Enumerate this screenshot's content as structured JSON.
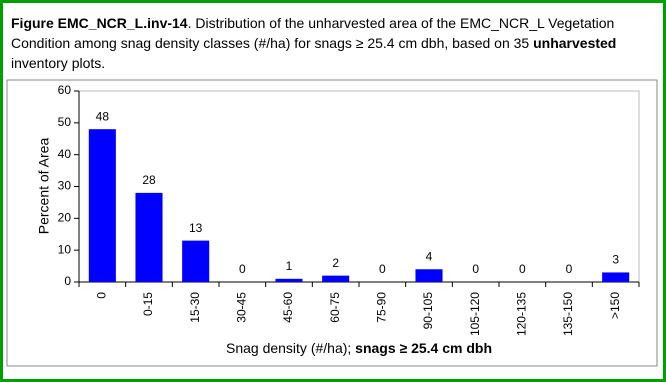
{
  "chart_data": {
    "type": "bar",
    "caption": [
      {
        "text": "Figure EMC_NCR_L.inv-14",
        "bold": true
      },
      {
        "text": ". Distribution of the unharvested area of the EMC_NCR_L Vegetation Condition among snag density classes (#/ha) for snags ≥ 25.4 cm dbh, based on 35 ",
        "bold": false
      },
      {
        "text": "unharvested",
        "bold": true
      },
      {
        "text": " inventory plots.",
        "bold": false
      }
    ],
    "y_label": "Percent of Area",
    "x_label": [
      {
        "text": "Snag density (#/ha); ",
        "bold": false
      },
      {
        "text": "snags ≥ 25.4 cm dbh",
        "bold": true
      }
    ],
    "categories": [
      "0",
      "0-15",
      "15-30",
      "30-45",
      "45-60",
      "60-75",
      "75-90",
      "90-105",
      "105-120",
      "120-135",
      "135-150",
      ">150"
    ],
    "values": [
      48,
      28,
      13,
      0,
      1,
      2,
      0,
      4,
      0,
      0,
      0,
      3
    ],
    "color": "#0000ff",
    "ylim": [
      0,
      60
    ],
    "yticks": [
      0,
      10,
      20,
      30,
      40,
      50,
      60
    ]
  }
}
